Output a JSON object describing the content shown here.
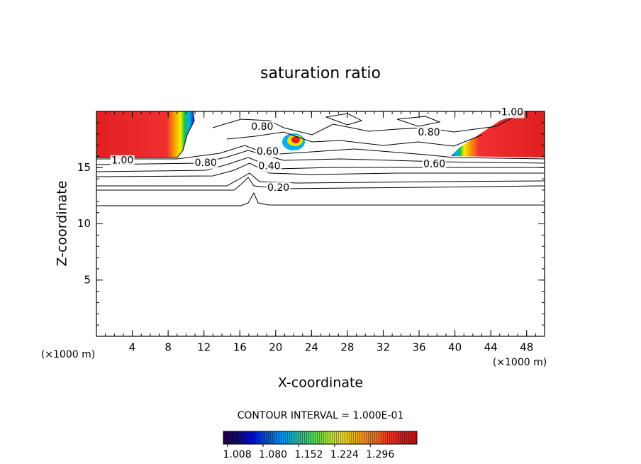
{
  "chart_data": {
    "type": "contour",
    "title": "saturation ratio",
    "x_label": "X-coordinate",
    "y_label": "Z-coordinate",
    "x_unit": "(×1000 m)",
    "y_unit": "(×1000 m)",
    "xlim": [
      0,
      50
    ],
    "ylim": [
      0,
      20
    ],
    "xticks": [
      4,
      8,
      12,
      16,
      20,
      24,
      28,
      32,
      36,
      40,
      44,
      48
    ],
    "yticks": [
      5,
      10,
      15
    ],
    "contour_labels": [
      {
        "value": 0.8,
        "label": "0.80",
        "x": 18.5,
        "y": 18.6
      },
      {
        "value": 0.8,
        "label": "0.80",
        "x": 37.1,
        "y": 18.1
      },
      {
        "value": 1,
        "label": "1.00",
        "x": 46.4,
        "y": 19.9
      },
      {
        "value": 1,
        "label": "1.00",
        "x": 2.9,
        "y": 15.6
      },
      {
        "value": 0.8,
        "label": "0.80",
        "x": 12.2,
        "y": 15.4
      },
      {
        "value": 0.6,
        "label": "0.60",
        "x": 19.1,
        "y": 16.4
      },
      {
        "value": 0.4,
        "label": "0.40",
        "x": 19.3,
        "y": 15.1
      },
      {
        "value": 0.6,
        "label": "0.60",
        "x": 37.7,
        "y": 15.3
      },
      {
        "value": 0.2,
        "label": "0.20",
        "x": 20.3,
        "y": 13.2
      }
    ],
    "annotation": "CONTOUR INTERVAL = 1.000E-01",
    "clim": [
      1.0,
      1.39
    ],
    "colorbar_ticks": [
      1.008,
      {
        "value": 1.08,
        "label": "1.080"
      },
      1.152,
      1.224,
      1.296
    ]
  }
}
